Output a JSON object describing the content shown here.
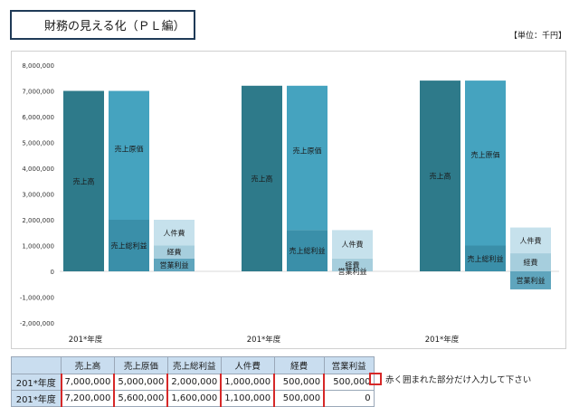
{
  "title": "財務の見える化（ＰＬ編）",
  "unit_label": "【単位：千円】",
  "note_text": "赤く囲まれた部分だけ入力して下さい",
  "colors": {
    "sales": "#2e7a8a",
    "cost": "#45a3bf",
    "gross": "#3a8fa9",
    "personnel": "#c6e1ec",
    "expenses": "#a6cedd",
    "operating": "#5fa5bd",
    "input_border": "#d62828",
    "header_fill": "#c9ddef"
  },
  "chart_data": {
    "type": "bar",
    "stacked_waterfall": true,
    "ylim": [
      -2000000,
      8000000
    ],
    "ytick_step": 1000000,
    "ytick_labels": [
      "8,000,000",
      "7,000,000",
      "6,000,000",
      "5,000,000",
      "4,000,000",
      "3,000,000",
      "2,000,000",
      "1,000,000",
      "0",
      "-1,000,000",
      "-2,000,000"
    ],
    "grid": false,
    "groups": [
      {
        "label": "201*年度",
        "sales": 7000000,
        "cost": 5000000,
        "gross": 2000000,
        "personnel": 1000000,
        "expenses": 500000,
        "operating": 500000
      },
      {
        "label": "201*年度",
        "sales": 7200000,
        "cost": 5600000,
        "gross": 1600000,
        "personnel": 1100000,
        "expenses": 500000,
        "operating": 0
      },
      {
        "label": "201*年度",
        "sales": 7400000,
        "cost": 6400000,
        "gross": 1000000,
        "personnel": 1000000,
        "expenses": 700000,
        "operating": -700000
      }
    ],
    "bar_labels": {
      "sales": "売上高",
      "cost": "売上原価",
      "gross": "売上総利益",
      "personnel": "人件費",
      "expenses": "経費",
      "operating": "営業利益"
    }
  },
  "table": {
    "headers": [
      "",
      "売上高",
      "売上原価",
      "売上総利益",
      "人件費",
      "経費",
      "営業利益"
    ],
    "rows": [
      [
        "201*年度",
        "7,000,000",
        "5,000,000",
        "2,000,000",
        "1,000,000",
        "500,000",
        "500,000"
      ],
      [
        "201*年度",
        "7,200,000",
        "5,600,000",
        "1,600,000",
        "1,100,000",
        "500,000",
        "0"
      ]
    ]
  }
}
